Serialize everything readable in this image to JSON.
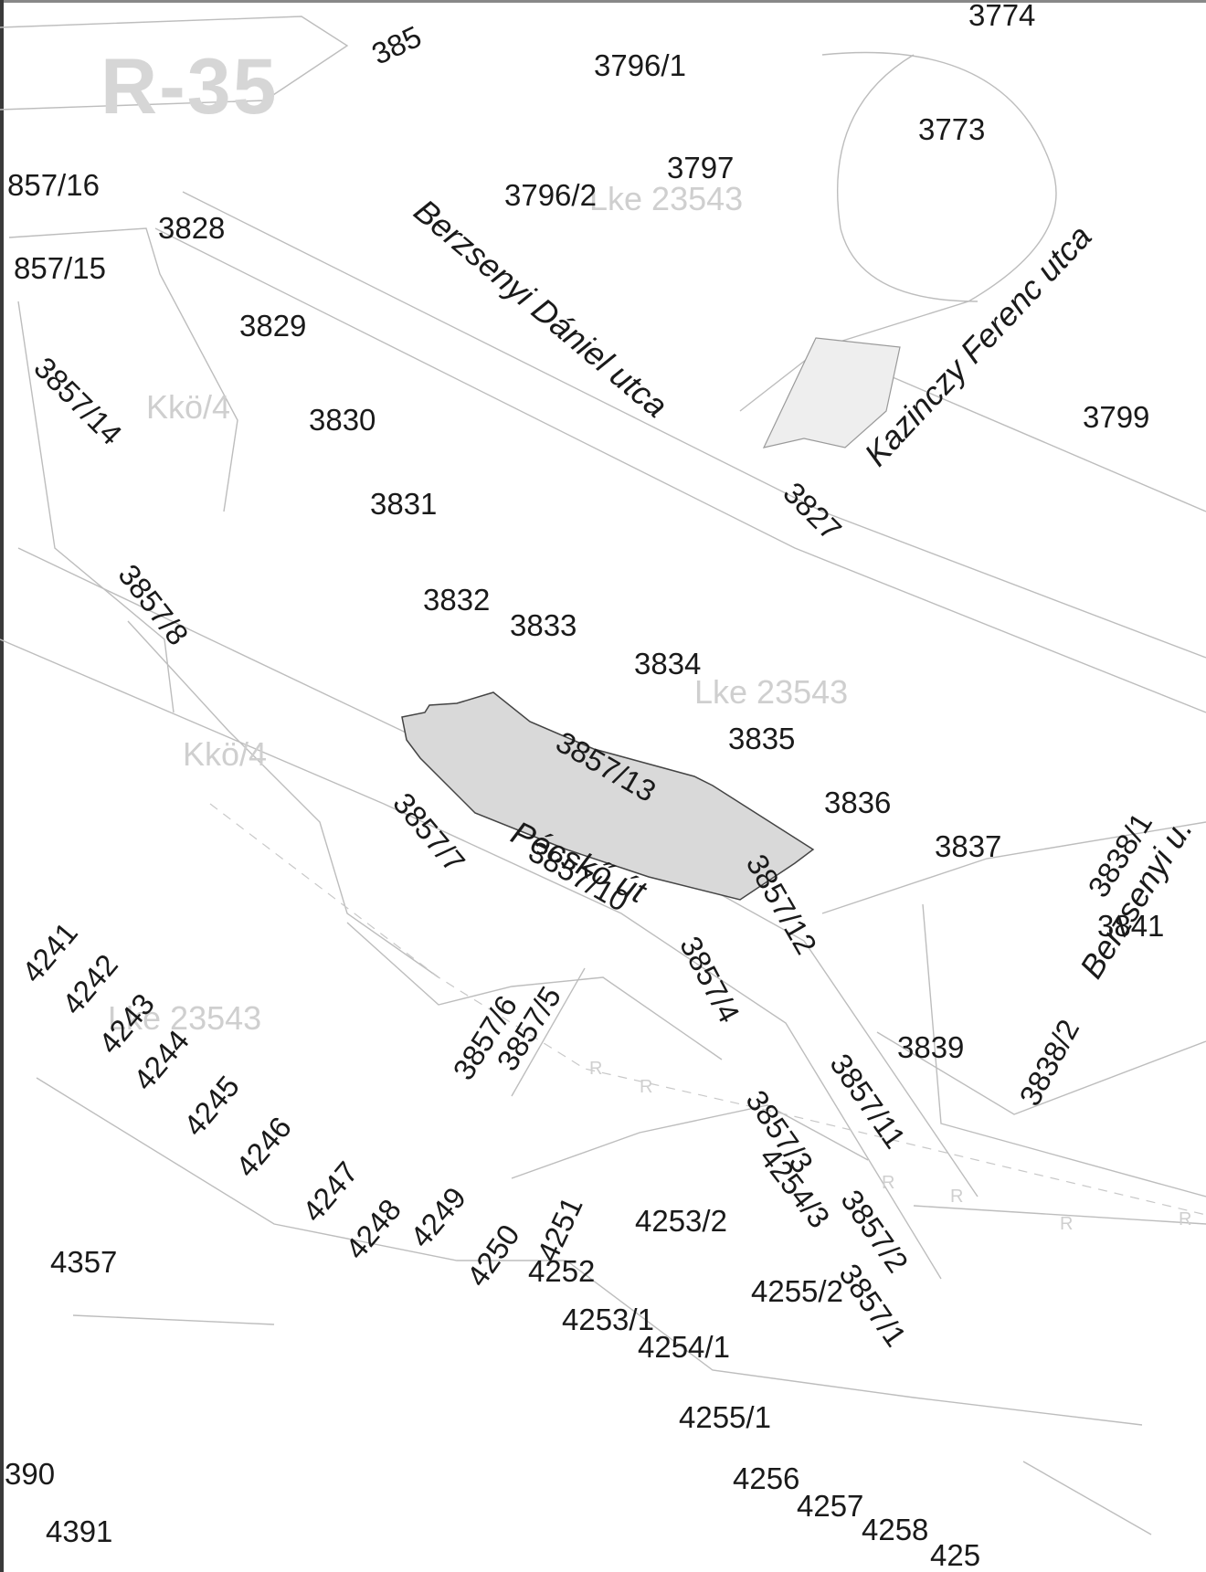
{
  "zone_label": "R-35",
  "streets": {
    "berzsenyi_daniel": "Berzsenyi Dániel utca",
    "kazinczy": "Kazinczy Ferenc utca",
    "pecsko": "Pécskő út",
    "berzsenyi_short": "Berzsenyi u."
  },
  "zoning": {
    "kko_upper": "Kkö/4",
    "kko_lower": "Kkö/4",
    "lke_top": "Lke 23543",
    "lke_mid": "Lke 23543",
    "lke_left": "Lke 23543"
  },
  "parcels": {
    "p3857_top": "385",
    "p3774": "3774",
    "p3796_1": "3796/1",
    "p3773": "3773",
    "p3797": "3797",
    "p3796_2": "3796/2",
    "p3857_16": "857/16",
    "p3828": "3828",
    "p3857_15": "857/15",
    "p3829": "3829",
    "p3857_14": "3857/14",
    "p3830": "3830",
    "p3799": "3799",
    "p3831": "3831",
    "p3827": "3827",
    "p3857_8": "3857/8",
    "p3832": "3832",
    "p3833": "3833",
    "p3834": "3834",
    "p3835": "3835",
    "p3857_13": "3857/13",
    "p3836": "3836",
    "p3837": "3837",
    "p3857_7": "3857/7",
    "p3857_10": "3857/10",
    "p3857_12": "3857/12",
    "p3838_1": "3838/1",
    "p3841": "3841",
    "p4241": "4241",
    "p4242": "4242",
    "p4243": "4243",
    "p4244": "4244",
    "p4245": "4245",
    "p4246": "4246",
    "p3857_6": "3857/6",
    "p3857_5": "3857/5",
    "p3857_4": "3857/4",
    "p3839": "3839",
    "p3838_2": "3838/2",
    "p3857_11": "3857/11",
    "p4247": "4247",
    "p4248": "4248",
    "p4249": "4249",
    "p4250": "4250",
    "p4251": "4251",
    "p3857_3": "3857/3",
    "p4254_3": "4254/3",
    "p3857_2": "3857/2",
    "p4253_2": "4253/2",
    "p4357": "4357",
    "p4252": "4252",
    "p4255_2": "4255/2",
    "p3857_1": "3857/1",
    "p4253_1": "4253/1",
    "p4254_1": "4254/1",
    "p4255_1": "4255/1",
    "p4390": "390",
    "p4256": "4256",
    "p4257": "4257",
    "p4258": "4258",
    "p425x": "425",
    "p4391": "4391"
  },
  "row_marker": "R"
}
